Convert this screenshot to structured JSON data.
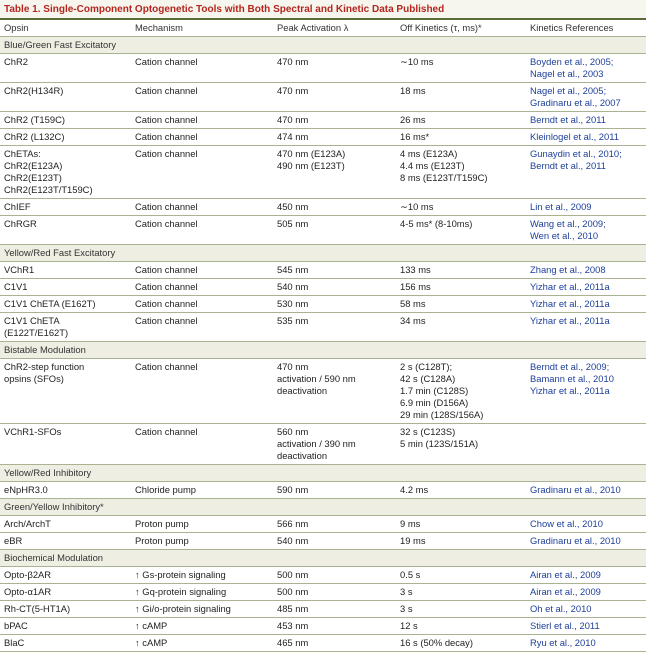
{
  "title": "Table 1. Single-Component Optogenetic Tools with Both Spectral and Kinetic Data Published",
  "header": [
    "Opsin",
    "Mechanism",
    "Peak Activation λ",
    "Off Kinetics (τ, ms)*",
    "Kinetics References"
  ],
  "sections": [
    {
      "title": "Blue/Green Fast Excitatory",
      "rows": [
        [
          [
            "ChR2"
          ],
          [
            "Cation channel"
          ],
          [
            "470 nm"
          ],
          [
            "∼10 ms"
          ],
          [
            "Boyden et al., 2005;",
            "Nagel et al., 2003"
          ]
        ],
        [
          [
            "ChR2(H134R)"
          ],
          [
            "Cation channel"
          ],
          [
            "470 nm"
          ],
          [
            "18 ms"
          ],
          [
            "Nagel et al., 2005;",
            "Gradinaru et al., 2007"
          ]
        ],
        [
          [
            "ChR2 (T159C)"
          ],
          [
            "Cation channel"
          ],
          [
            "470 nm"
          ],
          [
            "26 ms"
          ],
          [
            "Berndt et al., 2011"
          ]
        ],
        [
          [
            "ChR2 (L132C)"
          ],
          [
            "Cation channel"
          ],
          [
            "474 nm"
          ],
          [
            "16 ms*"
          ],
          [
            "Kleinlogel et al., 2011"
          ]
        ],
        [
          [
            "ChETAs:",
            "ChR2(E123A)",
            "ChR2(E123T)",
            "ChR2(E123T/T159C)"
          ],
          [
            "Cation channel"
          ],
          [
            "470 nm (E123A)",
            "490 nm (E123T)"
          ],
          [
            "4 ms (E123A)",
            "4.4 ms (E123T)",
            "8 ms (E123T/T159C)"
          ],
          [
            "Gunaydin et al., 2010;",
            "Berndt et al., 2011"
          ]
        ],
        [
          [
            "ChIEF"
          ],
          [
            "Cation channel"
          ],
          [
            "450 nm"
          ],
          [
            "∼10 ms"
          ],
          [
            "Lin et al., 2009"
          ]
        ],
        [
          [
            "ChRGR"
          ],
          [
            "Cation channel"
          ],
          [
            "505 nm"
          ],
          [
            "4-5 ms* (8-10ms)"
          ],
          [
            "Wang et al., 2009;",
            "Wen et al., 2010"
          ]
        ]
      ]
    },
    {
      "title": "Yellow/Red Fast Excitatory",
      "rows": [
        [
          [
            "VChR1"
          ],
          [
            "Cation channel"
          ],
          [
            "545 nm"
          ],
          [
            "133 ms"
          ],
          [
            "Zhang et al., 2008"
          ]
        ],
        [
          [
            "C1V1"
          ],
          [
            "Cation channel"
          ],
          [
            "540 nm"
          ],
          [
            "156 ms"
          ],
          [
            "Yizhar et al., 2011a"
          ]
        ],
        [
          [
            "C1V1 ChETA (E162T)"
          ],
          [
            "Cation channel"
          ],
          [
            "530 nm"
          ],
          [
            "58 ms"
          ],
          [
            "Yizhar et al., 2011a"
          ]
        ],
        [
          [
            "C1V1 ChETA",
            "(E122T/E162T)"
          ],
          [
            "Cation channel"
          ],
          [
            "535 nm"
          ],
          [
            "34 ms"
          ],
          [
            "Yizhar et al., 2011a"
          ]
        ]
      ]
    },
    {
      "title": "Bistable Modulation",
      "rows": [
        [
          [
            "ChR2-step function",
            "opsins (SFOs)"
          ],
          [
            "Cation channel"
          ],
          [
            "470 nm",
            "activation / 590 nm",
            "deactivation"
          ],
          [
            "2 s (C128T);",
            "42 s (C128A)",
            "1.7 min (C128S)",
            "6.9 min (D156A)",
            "29 min (128S/156A)"
          ],
          [
            "Berndt et al., 2009;",
            "Bamann et al., 2010",
            "Yizhar et al., 2011a"
          ]
        ],
        [
          [
            "VChR1-SFOs"
          ],
          [
            "Cation channel"
          ],
          [
            "560 nm",
            "activation / 390 nm",
            "deactivation"
          ],
          [
            "32 s (C123S)",
            "5 min (123S/151A)"
          ],
          []
        ]
      ]
    },
    {
      "title": "Yellow/Red Inhibitory",
      "rows": [
        [
          [
            "eNpHR3.0"
          ],
          [
            "Chloride pump"
          ],
          [
            "590 nm"
          ],
          [
            "4.2 ms"
          ],
          [
            "Gradinaru et al., 2010"
          ]
        ]
      ]
    },
    {
      "title": "Green/Yellow Inhibitory*",
      "rows": [
        [
          [
            "Arch/ArchT"
          ],
          [
            "Proton pump"
          ],
          [
            "566 nm"
          ],
          [
            "9 ms"
          ],
          [
            "Chow et al., 2010"
          ]
        ],
        [
          [
            "eBR"
          ],
          [
            "Proton pump"
          ],
          [
            "540 nm"
          ],
          [
            "19 ms"
          ],
          [
            "Gradinaru et al., 2010"
          ]
        ]
      ]
    },
    {
      "title": "Biochemical Modulation",
      "rows": [
        [
          [
            "Opto-β2AR"
          ],
          [
            "↑ Gs-protein signaling"
          ],
          [
            "500 nm"
          ],
          [
            "0.5 s"
          ],
          [
            "Airan et al., 2009"
          ]
        ],
        [
          [
            "Opto-α1AR"
          ],
          [
            "↑ Gq-protein signaling"
          ],
          [
            "500 nm"
          ],
          [
            "3 s"
          ],
          [
            "Airan et al., 2009"
          ]
        ],
        [
          [
            "Rh-CT(5-HT1A)"
          ],
          [
            "↑ Gi/o-protein signaling"
          ],
          [
            "485 nm"
          ],
          [
            "3 s"
          ],
          [
            "Oh et al., 2010"
          ]
        ],
        [
          [
            "bPAC"
          ],
          [
            "↑ cAMP"
          ],
          [
            "453 nm"
          ],
          [
            "12 s"
          ],
          [
            "Stierl et al., 2011"
          ]
        ],
        [
          [
            "BlaC"
          ],
          [
            "↑ cAMP"
          ],
          [
            "465 nm"
          ],
          [
            "16 s (50% decay)"
          ],
          [
            "Ryu et al., 2010"
          ]
        ]
      ]
    }
  ]
}
